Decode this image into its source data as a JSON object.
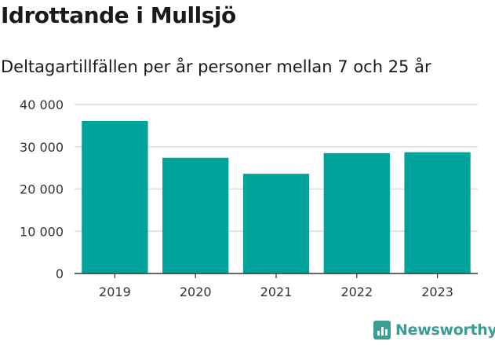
{
  "title": "Idrottande i Mullsjö",
  "subtitle": "Deltagartillfällen per år personer mellan 7 och 25 år",
  "brand": {
    "name": "Newsworthy",
    "icon": "newsworthy-logo-icon",
    "color": "#3b9e93"
  },
  "chart_data": {
    "type": "bar",
    "categories": [
      "2019",
      "2020",
      "2021",
      "2022",
      "2023"
    ],
    "values": [
      36100,
      27400,
      23600,
      28500,
      28700
    ],
    "ylim": [
      0,
      40000
    ],
    "yticks": [
      0,
      10000,
      20000,
      30000,
      40000
    ],
    "ytick_labels": [
      "0",
      "10 000",
      "20 000",
      "30 000",
      "40 000"
    ],
    "xlabel": "",
    "ylabel": "",
    "grid": true,
    "bar_color": "#00a39a"
  }
}
